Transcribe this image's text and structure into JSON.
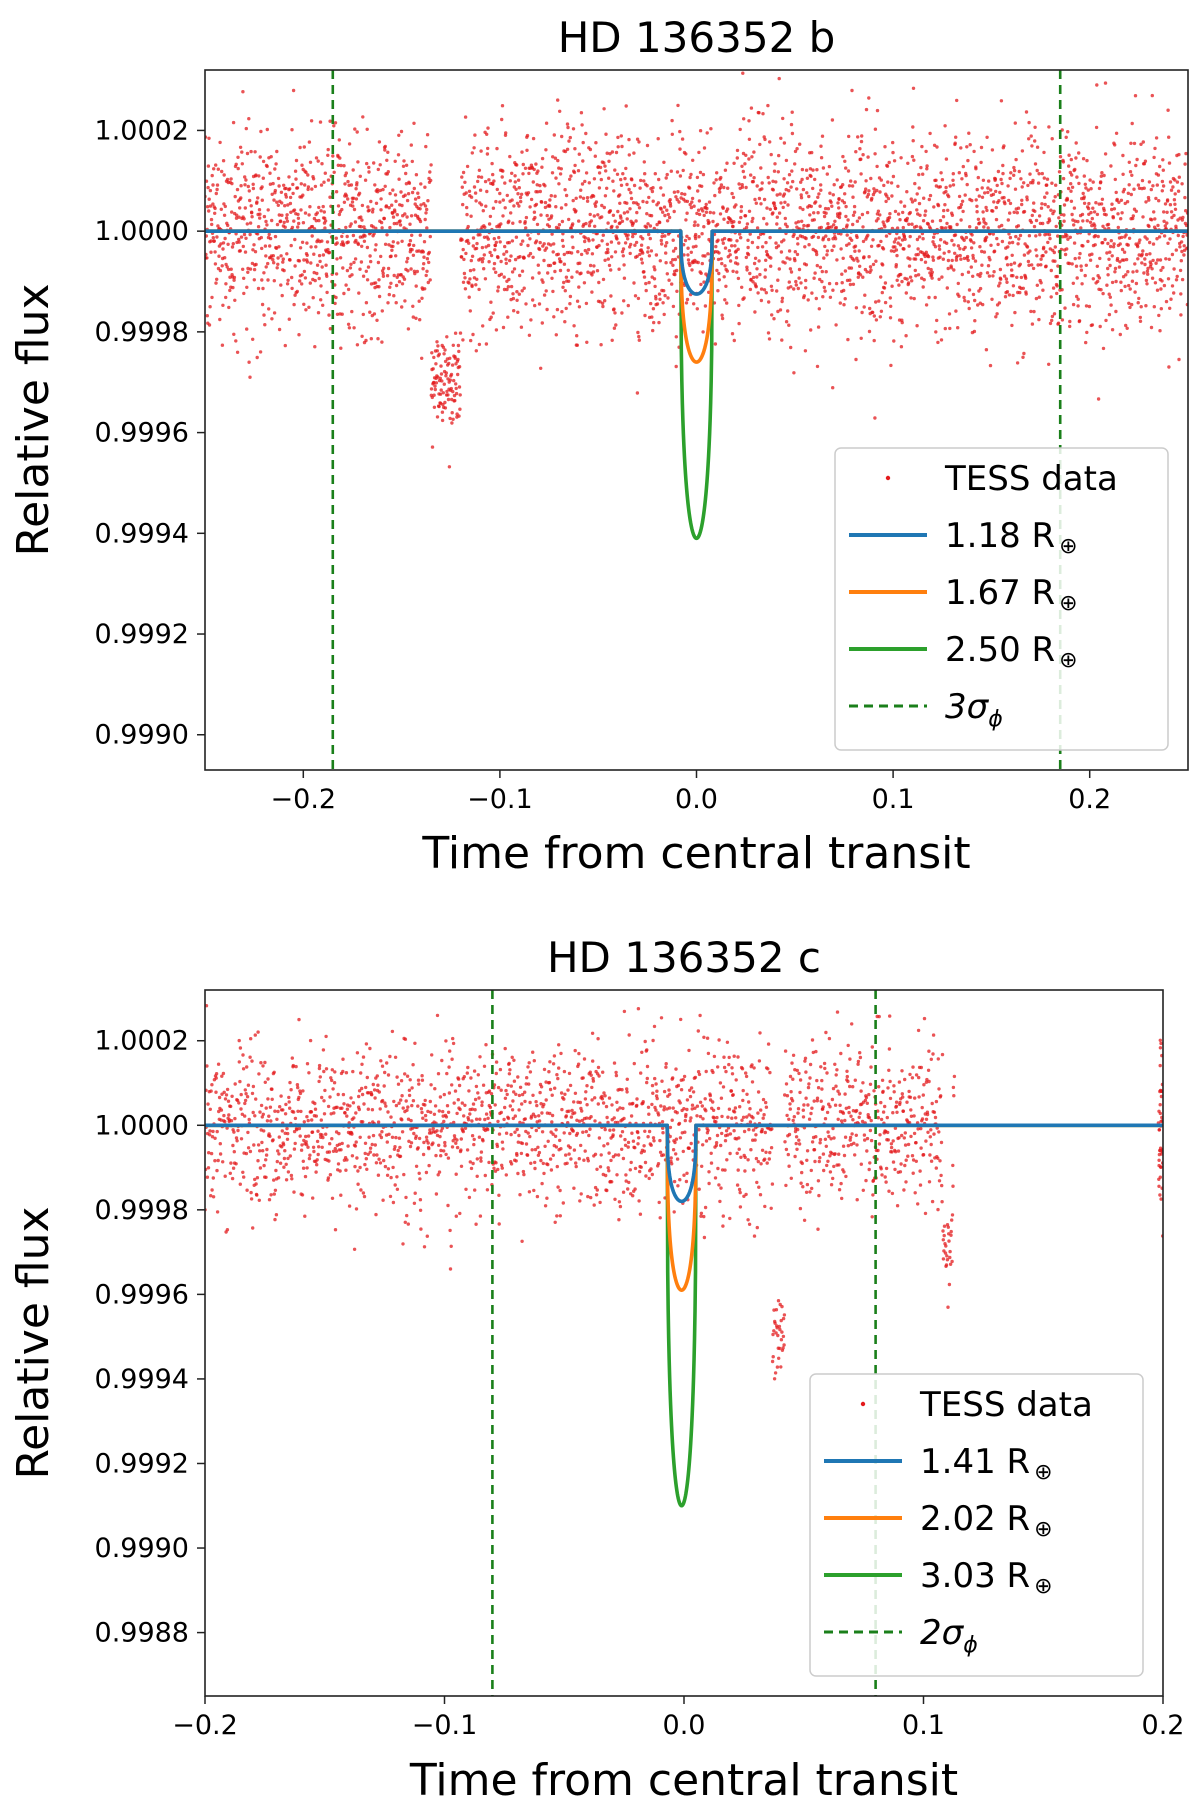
{
  "chart_data": [
    {
      "type": "line",
      "title": "HD 136352 b",
      "xlabel": "Time from central transit",
      "ylabel": "Relative flux",
      "xlim": [
        -0.25,
        0.25
      ],
      "ylim": [
        0.99893,
        1.00032
      ],
      "xticks": [
        -0.2,
        -0.1,
        0.0,
        0.1,
        0.2
      ],
      "xtick_labels": [
        "−0.2",
        "−0.1",
        "0.0",
        "0.1",
        "0.2"
      ],
      "yticks": [
        0.999,
        0.9992,
        0.9994,
        0.9996,
        0.9998,
        1.0,
        1.0002
      ],
      "ytick_labels": [
        "0.9990",
        "0.9992",
        "0.9994",
        "0.9996",
        "0.9998",
        "1.0000",
        "1.0002"
      ],
      "scatter": {
        "name": "TESS data",
        "color": "#e31a1c",
        "mean": 1.0,
        "scatter_std": 0.0001,
        "n_points": 3600,
        "gaps": [],
        "dip_regions": [
          [
            -0.135,
            -0.12,
            0.9997
          ]
        ]
      },
      "series": [
        {
          "name": "1.18",
          "color": "#1f77b4",
          "baseline": 1.0,
          "depth": 0.000125,
          "duration": 0.016,
          "center": 0.0
        },
        {
          "name": "1.67",
          "color": "#ff7f0e",
          "baseline": 1.0,
          "depth": 0.00026,
          "duration": 0.016,
          "center": 0.0
        },
        {
          "name": "2.50",
          "color": "#2ca02c",
          "baseline": 1.0,
          "depth": 0.00061,
          "duration": 0.016,
          "center": 0.0
        }
      ],
      "vlines": {
        "name": "3σ",
        "color": "#1a7f1a",
        "x": [
          -0.185,
          0.185
        ]
      },
      "legend": {
        "location": "lower-right",
        "labels": [
          "TESS data",
          "1.18 R",
          "1.67 R",
          "2.50 R",
          "3σ"
        ],
        "sub_label": "ϕ",
        "earth_symbol": "⊕"
      }
    },
    {
      "type": "line",
      "title": "HD 136352 c",
      "xlabel": "Time from central transit",
      "ylabel": "Relative flux",
      "xlim": [
        -0.2,
        0.2
      ],
      "ylim": [
        0.99865,
        1.00032
      ],
      "xticks": [
        -0.2,
        -0.1,
        0.0,
        0.1,
        0.2
      ],
      "xtick_labels": [
        "−0.2",
        "−0.1",
        "0.0",
        "0.1",
        "0.2"
      ],
      "yticks": [
        0.9988,
        0.999,
        0.9992,
        0.9994,
        0.9996,
        0.9998,
        1.0,
        1.0002
      ],
      "ytick_labels": [
        "0.9988",
        "0.9990",
        "0.9992",
        "0.9994",
        "0.9996",
        "0.9998",
        "1.0000",
        "1.0002"
      ],
      "scatter": {
        "name": "TESS data",
        "color": "#e31a1c",
        "mean": 1.0,
        "scatter_std": 0.0001,
        "n_points": 2600,
        "gaps": [
          [
            0.113,
            0.198
          ]
        ],
        "dip_regions": [
          [
            0.037,
            0.042,
            0.9995
          ],
          [
            0.108,
            0.112,
            0.9997
          ]
        ]
      },
      "series": [
        {
          "name": "1.41",
          "color": "#1f77b4",
          "baseline": 1.0,
          "depth": 0.00018,
          "duration": 0.012,
          "center": -0.001
        },
        {
          "name": "2.02",
          "color": "#ff7f0e",
          "baseline": 1.0,
          "depth": 0.00039,
          "duration": 0.012,
          "center": -0.001
        },
        {
          "name": "3.03",
          "color": "#2ca02c",
          "baseline": 1.0,
          "depth": 0.0009,
          "duration": 0.012,
          "center": -0.001
        }
      ],
      "vlines": {
        "name": "2σ",
        "color": "#1a7f1a",
        "x": [
          -0.08,
          0.08
        ]
      },
      "legend": {
        "location": "lower-right",
        "labels": [
          "TESS data",
          "1.41 R",
          "2.02 R",
          "3.03 R",
          "2σ"
        ],
        "sub_label": "ϕ",
        "earth_symbol": "⊕"
      }
    }
  ]
}
